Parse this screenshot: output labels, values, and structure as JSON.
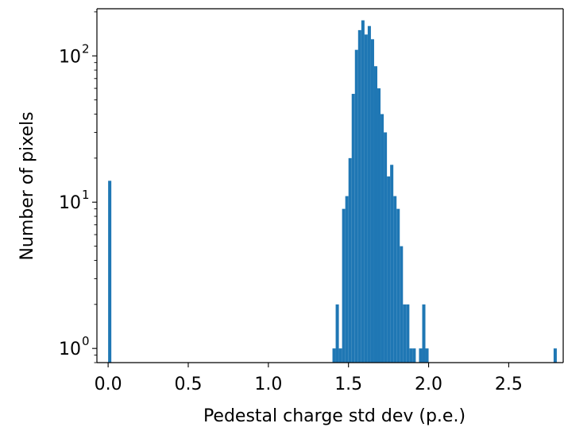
{
  "chart_data": {
    "type": "bar",
    "subtype": "histogram",
    "title": "",
    "xlabel": "Pedestal charge std dev (p.e.)",
    "ylabel": "Number of pixels",
    "xlim": [
      -0.07,
      2.84
    ],
    "ylim": [
      0.8,
      210
    ],
    "yscale": "log",
    "grid": false,
    "legend": "none",
    "bar_color": "#1f77b4",
    "bin_width": 0.02,
    "x_ticks": [
      {
        "value": 0.0,
        "label": "0.0"
      },
      {
        "value": 0.5,
        "label": "0.5"
      },
      {
        "value": 1.0,
        "label": "1.0"
      },
      {
        "value": 1.5,
        "label": "1.5"
      },
      {
        "value": 2.0,
        "label": "2.0"
      },
      {
        "value": 2.5,
        "label": "2.5"
      }
    ],
    "y_ticks": [
      {
        "value": 1,
        "base": "10",
        "exp": "0"
      },
      {
        "value": 10,
        "base": "10",
        "exp": "1"
      },
      {
        "value": 100,
        "base": "10",
        "exp": "2"
      }
    ],
    "bins": [
      {
        "x": 0.0,
        "count": 14
      },
      {
        "x": 1.4,
        "count": 1
      },
      {
        "x": 1.42,
        "count": 2
      },
      {
        "x": 1.44,
        "count": 1
      },
      {
        "x": 1.46,
        "count": 9
      },
      {
        "x": 1.48,
        "count": 11
      },
      {
        "x": 1.5,
        "count": 20
      },
      {
        "x": 1.52,
        "count": 55
      },
      {
        "x": 1.54,
        "count": 110
      },
      {
        "x": 1.56,
        "count": 150
      },
      {
        "x": 1.58,
        "count": 175
      },
      {
        "x": 1.6,
        "count": 140
      },
      {
        "x": 1.62,
        "count": 160
      },
      {
        "x": 1.64,
        "count": 130
      },
      {
        "x": 1.66,
        "count": 85
      },
      {
        "x": 1.68,
        "count": 60
      },
      {
        "x": 1.7,
        "count": 40
      },
      {
        "x": 1.72,
        "count": 30
      },
      {
        "x": 1.74,
        "count": 15
      },
      {
        "x": 1.76,
        "count": 18
      },
      {
        "x": 1.78,
        "count": 11
      },
      {
        "x": 1.8,
        "count": 9
      },
      {
        "x": 1.82,
        "count": 5
      },
      {
        "x": 1.84,
        "count": 2
      },
      {
        "x": 1.86,
        "count": 2
      },
      {
        "x": 1.88,
        "count": 1
      },
      {
        "x": 1.9,
        "count": 1
      },
      {
        "x": 1.94,
        "count": 1
      },
      {
        "x": 1.96,
        "count": 2
      },
      {
        "x": 1.98,
        "count": 1
      },
      {
        "x": 2.78,
        "count": 1
      }
    ]
  }
}
